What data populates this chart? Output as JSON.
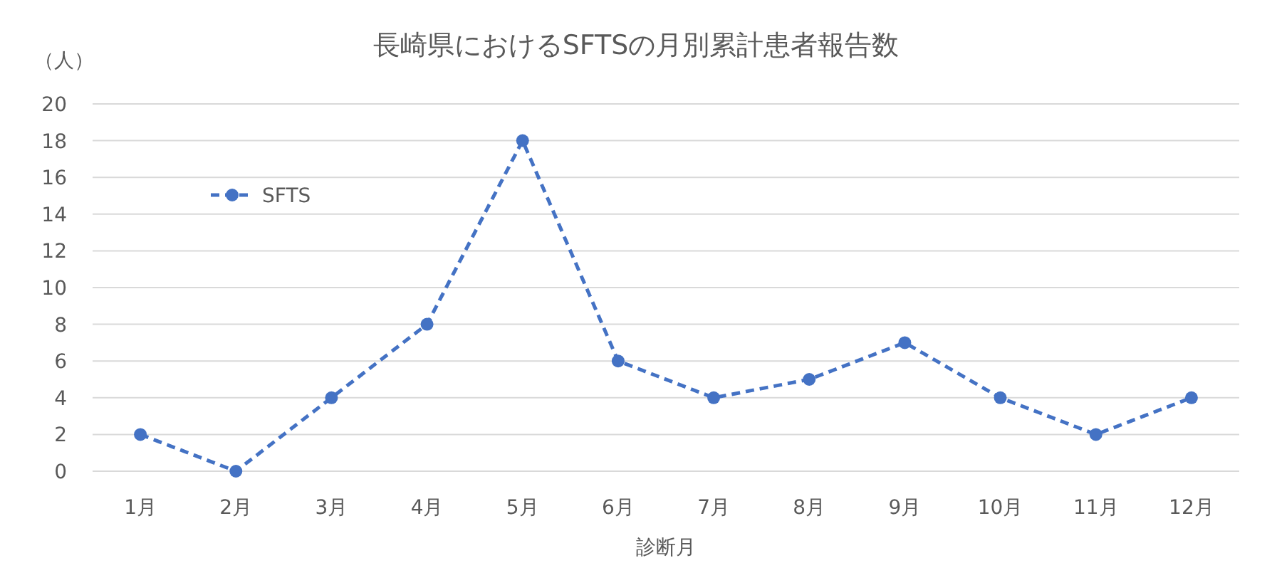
{
  "chart_data": {
    "type": "line",
    "title": "長崎県におけるSFTSの月別累計患者報告数",
    "ylabel": "（人）",
    "xlabel": "診断月",
    "categories": [
      "1月",
      "2月",
      "3月",
      "4月",
      "5月",
      "6月",
      "7月",
      "8月",
      "9月",
      "10月",
      "11月",
      "12月"
    ],
    "series": [
      {
        "name": "SFTS",
        "color": "#4472c4",
        "values": [
          2,
          0,
          4,
          8,
          18,
          6,
          4,
          5,
          7,
          4,
          2,
          4
        ]
      }
    ],
    "ylim": [
      0,
      20
    ],
    "yticks": [
      0,
      2,
      4,
      6,
      8,
      10,
      12,
      14,
      16,
      18,
      20
    ],
    "grid": "y",
    "legend": "top left",
    "marker": "circle",
    "line_style": "dashed"
  }
}
